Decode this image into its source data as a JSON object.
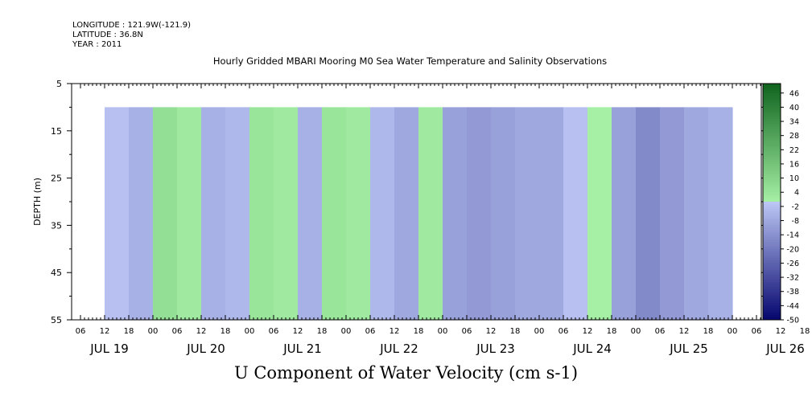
{
  "meta": {
    "longitude": "LONGITUDE : 121.9W(-121.9)",
    "latitude": "LATITUDE : 36.8N",
    "year": "YEAR : 2011"
  },
  "chart_data": {
    "type": "heatmap",
    "title": "Hourly Gridded MBARI Mooring M0 Sea Water Temperature and Salinity Observations",
    "xlabel": "U Component of Water Velocity (cm s-1)",
    "ylabel": "DEPTH (m)",
    "ylim": [
      55,
      5
    ],
    "y_ticks": [
      5,
      15,
      25,
      35,
      45,
      55
    ],
    "x_hour_ticks": [
      "06",
      "12",
      "18",
      "00",
      "06",
      "12",
      "18",
      "00",
      "06",
      "12",
      "18",
      "00",
      "06",
      "12",
      "18",
      "00",
      "06",
      "12",
      "18",
      "00",
      "06",
      "12",
      "18",
      "00",
      "06",
      "12",
      "18",
      "00",
      "06",
      "12",
      "18",
      "00"
    ],
    "x_day_labels": [
      "JUL 19",
      "JUL 20",
      "JUL 21",
      "JUL 22",
      "JUL 23",
      "JUL 24",
      "JUL 25",
      "JUL 26"
    ],
    "data_depth_range": [
      10,
      55
    ],
    "colorbar_ticks": [
      46,
      40,
      34,
      28,
      22,
      16,
      10,
      4,
      -2,
      -8,
      -14,
      -20,
      -26,
      -32,
      -38,
      -44,
      -50
    ],
    "colorbar_range": [
      -50,
      50
    ],
    "grid": false,
    "days": [
      "JUL 19",
      "JUL 20",
      "JUL 21",
      "JUL 22",
      "JUL 23",
      "JUL 24",
      "JUL 25"
    ],
    "u_velocity_depth_mean_6h_blocks": [
      [
        6,
        4,
        -2,
        -6
      ],
      [
        6,
        2,
        -6,
        -4
      ],
      [
        4,
        2,
        -6,
        4
      ],
      [
        2,
        -4,
        -8,
        2
      ],
      [
        -10,
        -12,
        -10,
        -8
      ],
      [
        -8,
        -2,
        0,
        -10
      ],
      [
        -16,
        -12,
        -8,
        -6
      ]
    ]
  }
}
